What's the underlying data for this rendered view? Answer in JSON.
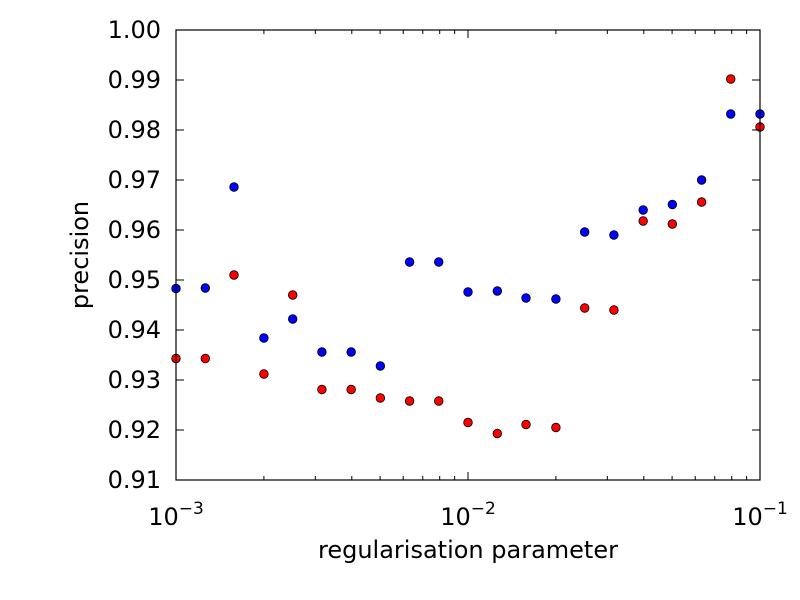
{
  "chart_data": {
    "type": "scatter",
    "title": "",
    "xlabel": "regularisation parameter",
    "ylabel": "precision",
    "xscale": "log",
    "xlim": [
      0.001,
      0.1
    ],
    "ylim": [
      0.91,
      1.0
    ],
    "grid": false,
    "x_ticks": [
      {
        "value": 0.001,
        "base": "10",
        "exponent": "−3"
      },
      {
        "value": 0.01,
        "base": "10",
        "exponent": "−2"
      },
      {
        "value": 0.1,
        "base": "10",
        "exponent": "−1"
      }
    ],
    "y_ticks": [
      "0.91",
      "0.92",
      "0.93",
      "0.94",
      "0.95",
      "0.96",
      "0.97",
      "0.98",
      "0.99",
      "1.00"
    ],
    "series": [
      {
        "color": "#0000ff",
        "x": [
          0.001,
          0.00126,
          0.00158,
          0.002,
          0.00251,
          0.00316,
          0.00398,
          0.00501,
          0.00631,
          0.00794,
          0.01,
          0.0126,
          0.0158,
          0.02,
          0.0251,
          0.0316,
          0.0398,
          0.0501,
          0.0631,
          0.0794,
          0.1
        ],
        "y": [
          0.9483,
          0.9484,
          0.9686,
          0.9384,
          0.9422,
          0.9356,
          0.9356,
          0.9328,
          0.9536,
          0.9536,
          0.9476,
          0.9478,
          0.9464,
          0.9462,
          0.9596,
          0.959,
          0.964,
          0.9651,
          0.97,
          0.9832,
          0.9832
        ]
      },
      {
        "color": "#ff0000",
        "x": [
          0.001,
          0.00126,
          0.00158,
          0.002,
          0.00251,
          0.00316,
          0.00398,
          0.00501,
          0.00631,
          0.00794,
          0.01,
          0.0126,
          0.0158,
          0.02,
          0.0251,
          0.0316,
          0.0398,
          0.0501,
          0.0631,
          0.0794,
          0.1
        ],
        "y": [
          0.9343,
          0.9343,
          0.951,
          0.9312,
          0.947,
          0.9281,
          0.9281,
          0.9264,
          0.9258,
          0.9258,
          0.9215,
          0.9193,
          0.9211,
          0.9205,
          0.9444,
          0.944,
          0.9618,
          0.9612,
          0.9656,
          0.9902,
          0.9806
        ]
      }
    ]
  }
}
